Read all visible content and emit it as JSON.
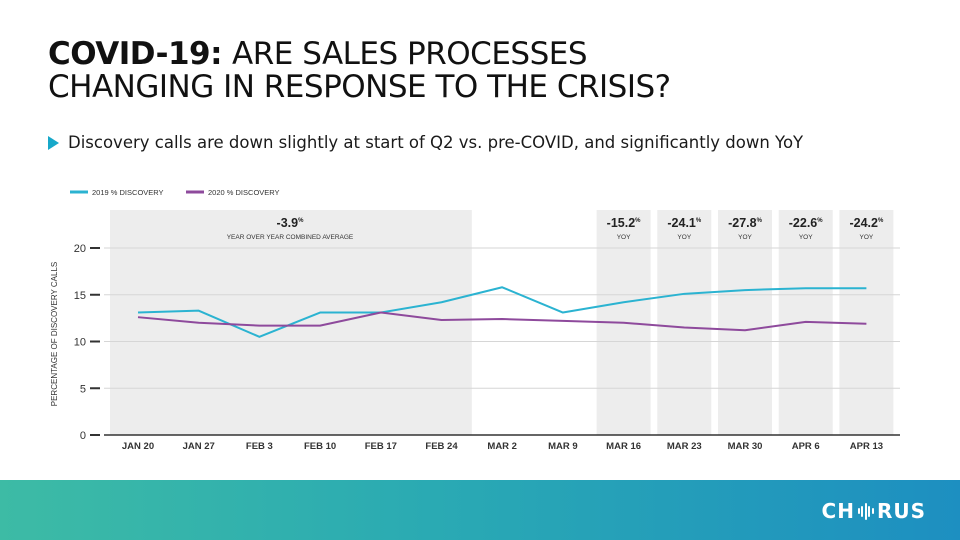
{
  "slide": {
    "title_bold": "COVID-19:",
    "title_rest_line1": "ARE SALES PROCESSES",
    "title_line2": "CHANGING IN RESPONSE TO THE CRISIS?",
    "bullet": "Discovery calls are down slightly at start of Q2 vs. pre-COVID, and significantly down YoY"
  },
  "logo": {
    "left": "CH",
    "right": "RUS",
    "icon": "sound-wave-icon"
  },
  "colors": {
    "series_2019": "#2bb3d1",
    "series_2020": "#8e4a9c",
    "shade": "#ededed",
    "accent": "#17a8c9"
  },
  "chart_data": {
    "type": "line",
    "categories": [
      "JAN 20",
      "JAN 27",
      "FEB 3",
      "FEB 10",
      "FEB 17",
      "FEB 24",
      "MAR 2",
      "MAR 9",
      "MAR 16",
      "MAR 23",
      "MAR 30",
      "APR 6",
      "APR 13"
    ],
    "series": [
      {
        "name": "2019 % DISCOVERY",
        "color": "#2bb3d1",
        "values": [
          13.1,
          13.3,
          10.5,
          13.1,
          13.1,
          14.2,
          15.8,
          13.1,
          14.2,
          15.1,
          15.5,
          15.7,
          15.7
        ]
      },
      {
        "name": "2020 % DISCOVERY",
        "color": "#8e4a9c",
        "values": [
          12.6,
          12.0,
          11.7,
          11.7,
          13.1,
          12.3,
          12.4,
          12.2,
          12.0,
          11.5,
          11.2,
          12.1,
          11.9
        ]
      }
    ],
    "ylabel": "PERCENTAGE OF DISCOVERY CALLS",
    "xlabel": "",
    "ylim": [
      0,
      20
    ],
    "yticks": [
      0,
      5,
      10,
      15,
      20
    ],
    "grid": true,
    "legend": "top-left",
    "annotations": [
      {
        "start": "JAN 20",
        "end": "FEB 24",
        "value": "-3.9",
        "unit": "%",
        "label": "YEAR OVER YEAR COMBINED AVERAGE"
      },
      {
        "start": "MAR 16",
        "end": "MAR 16",
        "value": "-15.2",
        "unit": "%",
        "label": "YOY"
      },
      {
        "start": "MAR 23",
        "end": "MAR 23",
        "value": "-24.1",
        "unit": "%",
        "label": "YOY"
      },
      {
        "start": "MAR 30",
        "end": "MAR 30",
        "value": "-27.8",
        "unit": "%",
        "label": "YOY"
      },
      {
        "start": "APR 6",
        "end": "APR 6",
        "value": "-22.6",
        "unit": "%",
        "label": "YOY"
      },
      {
        "start": "APR 13",
        "end": "APR 13",
        "value": "-24.2",
        "unit": "%",
        "label": "YOY"
      }
    ]
  }
}
